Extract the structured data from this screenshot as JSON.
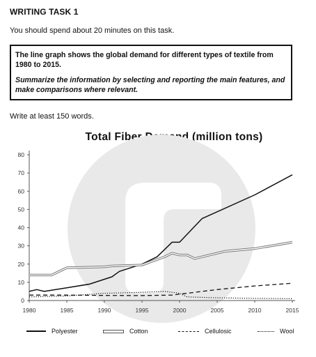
{
  "header": {
    "task": "WRITING TASK 1",
    "instruction": "You should spend about 20 minutes on this task.",
    "prompt_description": "The line graph shows the global demand for different types of textile from 1980 to 2015.",
    "prompt_instruction": "Summarize the information by selecting and reporting the main features, and make comparisons where relevant.",
    "word_count": "Write at least 150 words."
  },
  "chart_data": {
    "type": "line",
    "title": "Total Fiber Demand (million tons)",
    "xlabel": "",
    "ylabel": "",
    "xlim": [
      1980,
      2015
    ],
    "ylim": [
      0,
      80
    ],
    "x_ticks": [
      1980,
      1985,
      1990,
      1995,
      2000,
      2005,
      2010,
      2015
    ],
    "y_ticks": [
      0,
      10,
      20,
      30,
      40,
      50,
      60,
      70,
      80
    ],
    "grid": false,
    "legend": "bottom",
    "series": [
      {
        "name": "Polyester",
        "style": "solid",
        "x": [
          1980,
          1981,
          1982,
          1985,
          1988,
          1991,
          1992,
          1995,
          1997,
          1998,
          1999,
          2000,
          2003,
          2010,
          2015
        ],
        "y": [
          5,
          6,
          5,
          7,
          9,
          13,
          16,
          20,
          24,
          28,
          32,
          32,
          45,
          58,
          69
        ]
      },
      {
        "name": "Cotton",
        "style": "double",
        "x": [
          1980,
          1983,
          1984,
          1985,
          1990,
          1991,
          1995,
          1998,
          1999,
          2000,
          2001,
          2002,
          2006,
          2010,
          2015
        ],
        "y": [
          14,
          14,
          16,
          18,
          18.5,
          19,
          19.5,
          24,
          26,
          25,
          25,
          23,
          27,
          28.5,
          32
        ]
      },
      {
        "name": "Cellulosic",
        "style": "dashed",
        "x": [
          1980,
          1985,
          1990,
          1995,
          1999,
          2000,
          2005,
          2010,
          2015
        ],
        "y": [
          3,
          3,
          2.8,
          2.7,
          3,
          3.5,
          6,
          8,
          9.5
        ]
      },
      {
        "name": "Wool",
        "style": "dotted",
        "x": [
          1980,
          1985,
          1990,
          1995,
          1998,
          2000,
          2001,
          2005,
          2010,
          2015
        ],
        "y": [
          2,
          2.5,
          4,
          4.5,
          5,
          4,
          2,
          1.5,
          1.2,
          1
        ]
      }
    ]
  }
}
